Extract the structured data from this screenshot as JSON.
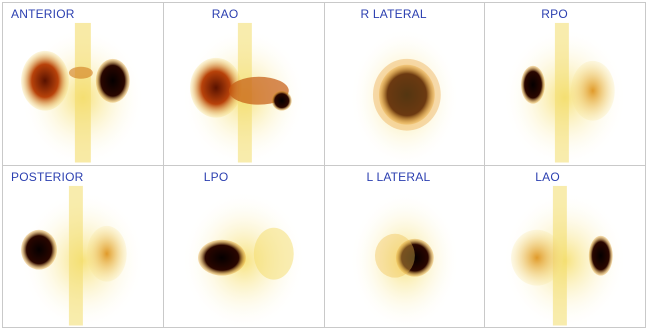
{
  "views": [
    {
      "label": "ANTERIOR",
      "left": "dark",
      "right": "black"
    },
    {
      "label": "RAO",
      "left": "dark",
      "right": "black"
    },
    {
      "label": "R LATERAL",
      "left": "black",
      "right": "none"
    },
    {
      "label": "RPO",
      "left": "black",
      "right": "dark"
    },
    {
      "label": "POSTERIOR",
      "left": "black",
      "right": "light"
    },
    {
      "label": "LPO",
      "left": "black",
      "right": "faint"
    },
    {
      "label": "L LATERAL",
      "left": "black",
      "right": "none"
    },
    {
      "label": "LAO",
      "left": "light",
      "right": "black"
    }
  ],
  "colors": {
    "label": "#2b3fb0",
    "background": "#ffffff",
    "divider": "#c9c9c9",
    "tracer_dark": "#1a0500",
    "tracer_mid": "#b8420a",
    "tracer_light": "#f1d25a",
    "body_glow": "#fbf1b0"
  }
}
